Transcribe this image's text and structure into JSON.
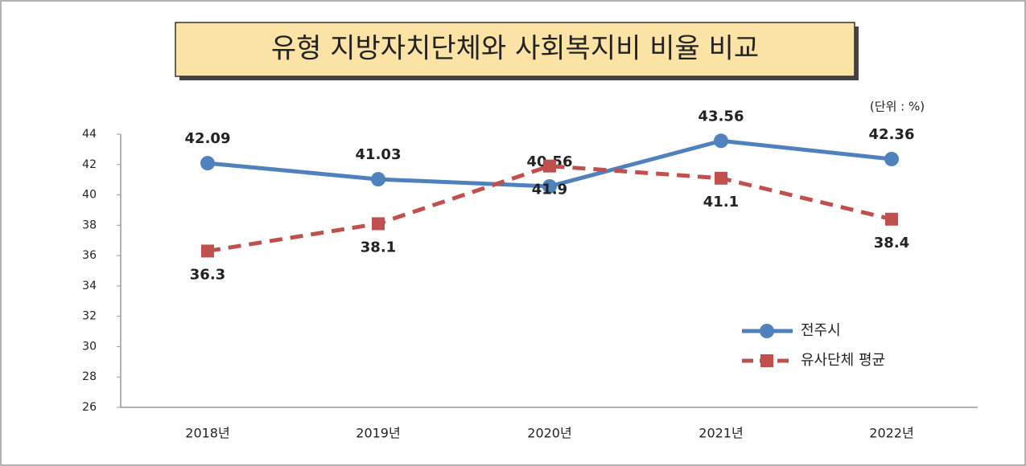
{
  "chart_data": {
    "type": "line",
    "title": "유형 지방자치단체와 사회복지비 비율 비교",
    "unit_label": "(단위 : %)",
    "categories": [
      "2018년",
      "2019년",
      "2020년",
      "2021년",
      "2022년"
    ],
    "series": [
      {
        "name": "전주시",
        "color": "#4f81bd",
        "style": "solid",
        "marker": "circle",
        "values": [
          42.09,
          41.03,
          40.56,
          43.56,
          42.36
        ]
      },
      {
        "name": "유사단체 평균",
        "color": "#c0504d",
        "style": "dashed",
        "marker": "square",
        "values": [
          36.3,
          38.1,
          41.9,
          41.1,
          38.4
        ]
      }
    ],
    "ylim": [
      26,
      44
    ],
    "yticks": [
      26,
      28,
      30,
      32,
      34,
      36,
      38,
      40,
      42,
      44
    ],
    "grid": false,
    "legend": "lower right"
  }
}
